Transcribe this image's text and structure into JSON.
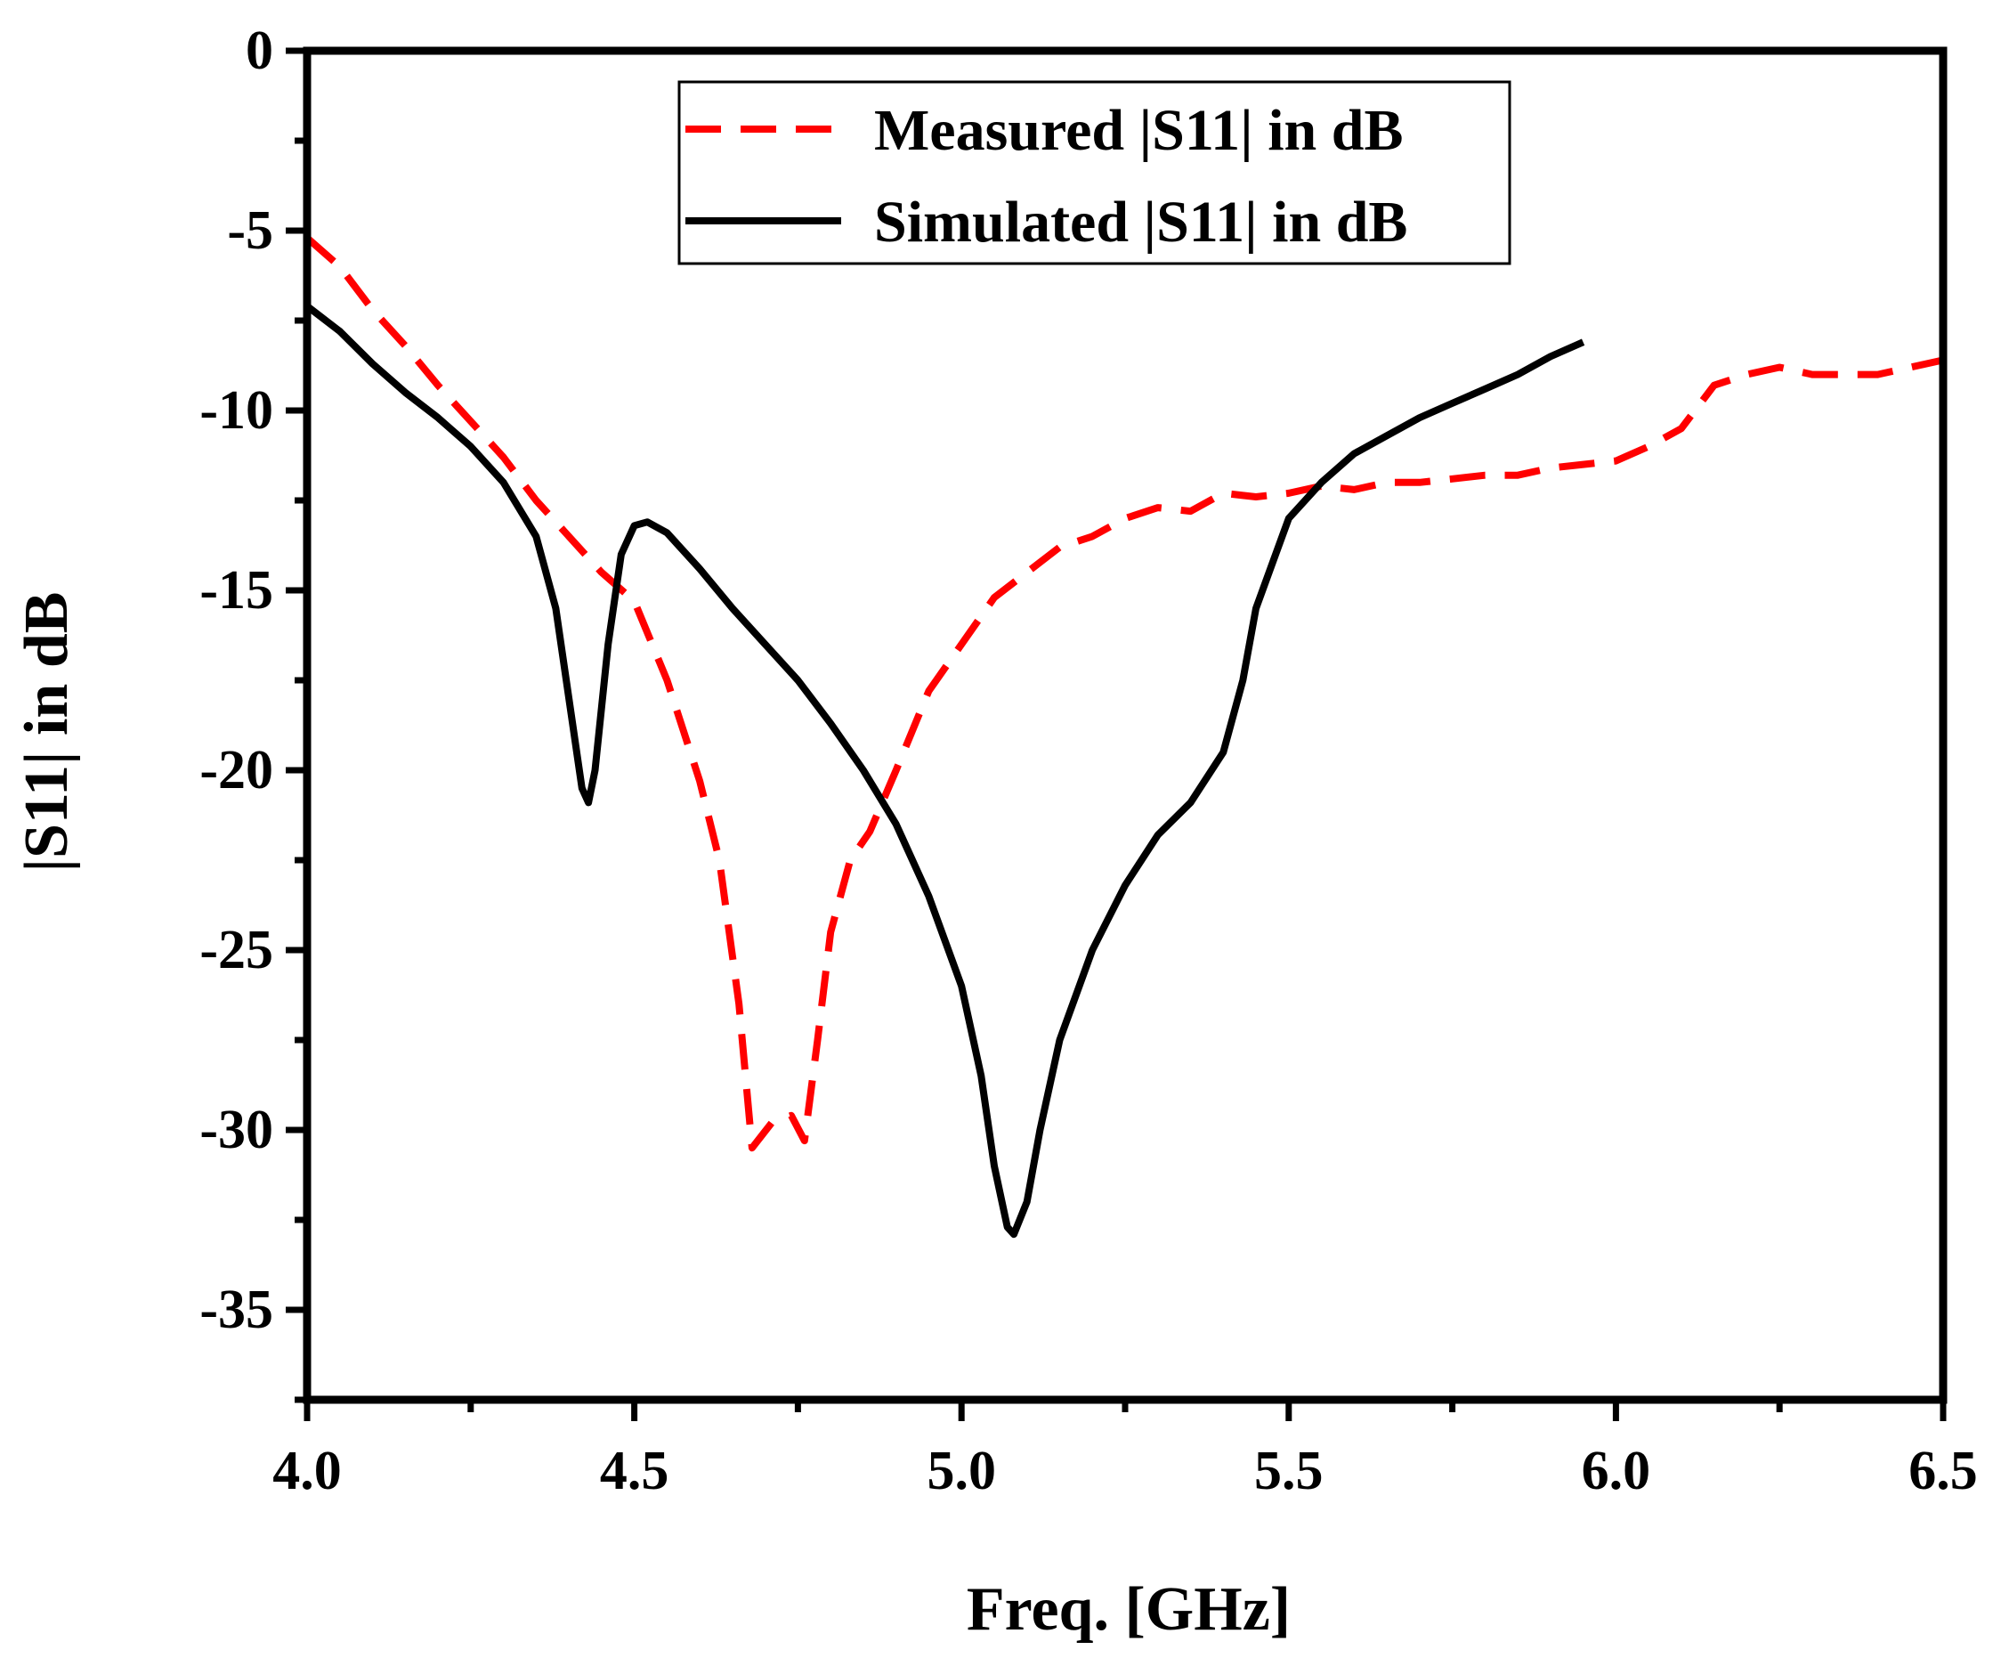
{
  "chart_data": {
    "type": "line",
    "title": "",
    "xlabel": "Freq. [GHz]",
    "ylabel": "|S11| in dB",
    "xlim": [
      4.0,
      6.5
    ],
    "ylim": [
      -37.5,
      0
    ],
    "x_ticks": [
      4.0,
      4.5,
      5.0,
      5.5,
      6.0,
      6.5
    ],
    "x_tick_labels": [
      "4.0",
      "4.5",
      "5.0",
      "5.5",
      "6.0",
      "6.5"
    ],
    "y_ticks": [
      0,
      -5,
      -10,
      -15,
      -20,
      -25,
      -30,
      -35
    ],
    "y_tick_labels": [
      "0",
      "-5",
      "-10",
      "-15",
      "-20",
      "-25",
      "-30",
      "-35"
    ],
    "grid": false,
    "legend_position": "top-center",
    "series": [
      {
        "name": "Measured |S11| in dB",
        "color": "#ff0000",
        "style": "dashed",
        "points": [
          [
            4.0,
            -5.2
          ],
          [
            4.05,
            -6.0
          ],
          [
            4.1,
            -7.2
          ],
          [
            4.15,
            -8.2
          ],
          [
            4.2,
            -9.3
          ],
          [
            4.25,
            -10.3
          ],
          [
            4.3,
            -11.3
          ],
          [
            4.35,
            -12.5
          ],
          [
            4.4,
            -13.5
          ],
          [
            4.45,
            -14.5
          ],
          [
            4.5,
            -15.3
          ],
          [
            4.55,
            -17.5
          ],
          [
            4.6,
            -20.3
          ],
          [
            4.63,
            -22.5
          ],
          [
            4.66,
            -26.5
          ],
          [
            4.68,
            -30.5
          ],
          [
            4.71,
            -29.8
          ],
          [
            4.74,
            -29.6
          ],
          [
            4.76,
            -30.3
          ],
          [
            4.78,
            -27.5
          ],
          [
            4.8,
            -24.5
          ],
          [
            4.83,
            -22.5
          ],
          [
            4.86,
            -21.7
          ],
          [
            4.9,
            -20.0
          ],
          [
            4.95,
            -17.8
          ],
          [
            5.0,
            -16.5
          ],
          [
            5.05,
            -15.2
          ],
          [
            5.1,
            -14.5
          ],
          [
            5.15,
            -13.8
          ],
          [
            5.2,
            -13.5
          ],
          [
            5.25,
            -13.0
          ],
          [
            5.3,
            -12.7
          ],
          [
            5.35,
            -12.8
          ],
          [
            5.4,
            -12.3
          ],
          [
            5.45,
            -12.4
          ],
          [
            5.5,
            -12.3
          ],
          [
            5.55,
            -12.1
          ],
          [
            5.6,
            -12.2
          ],
          [
            5.65,
            -12.0
          ],
          [
            5.7,
            -12.0
          ],
          [
            5.75,
            -11.9
          ],
          [
            5.8,
            -11.8
          ],
          [
            5.85,
            -11.8
          ],
          [
            5.9,
            -11.6
          ],
          [
            5.95,
            -11.5
          ],
          [
            6.0,
            -11.4
          ],
          [
            6.05,
            -11.0
          ],
          [
            6.1,
            -10.5
          ],
          [
            6.15,
            -9.3
          ],
          [
            6.2,
            -9.0
          ],
          [
            6.25,
            -8.8
          ],
          [
            6.3,
            -9.0
          ],
          [
            6.35,
            -9.0
          ],
          [
            6.4,
            -9.0
          ],
          [
            6.45,
            -8.8
          ],
          [
            6.5,
            -8.6
          ]
        ]
      },
      {
        "name": "Simulated |S11| in dB",
        "color": "#000000",
        "style": "solid",
        "points": [
          [
            4.0,
            -7.1
          ],
          [
            4.05,
            -7.8
          ],
          [
            4.1,
            -8.7
          ],
          [
            4.15,
            -9.5
          ],
          [
            4.2,
            -10.2
          ],
          [
            4.25,
            -11.0
          ],
          [
            4.3,
            -12.0
          ],
          [
            4.35,
            -13.5
          ],
          [
            4.38,
            -15.5
          ],
          [
            4.4,
            -18.0
          ],
          [
            4.42,
            -20.5
          ],
          [
            4.43,
            -20.9
          ],
          [
            4.44,
            -20.0
          ],
          [
            4.46,
            -16.5
          ],
          [
            4.48,
            -14.0
          ],
          [
            4.5,
            -13.2
          ],
          [
            4.52,
            -13.1
          ],
          [
            4.55,
            -13.4
          ],
          [
            4.6,
            -14.4
          ],
          [
            4.65,
            -15.5
          ],
          [
            4.7,
            -16.5
          ],
          [
            4.75,
            -17.5
          ],
          [
            4.8,
            -18.7
          ],
          [
            4.85,
            -20.0
          ],
          [
            4.9,
            -21.5
          ],
          [
            4.95,
            -23.5
          ],
          [
            5.0,
            -26.0
          ],
          [
            5.03,
            -28.5
          ],
          [
            5.05,
            -31.0
          ],
          [
            5.07,
            -32.7
          ],
          [
            5.08,
            -32.9
          ],
          [
            5.1,
            -32.0
          ],
          [
            5.12,
            -30.0
          ],
          [
            5.15,
            -27.5
          ],
          [
            5.2,
            -25.0
          ],
          [
            5.25,
            -23.2
          ],
          [
            5.3,
            -21.8
          ],
          [
            5.35,
            -20.9
          ],
          [
            5.4,
            -19.5
          ],
          [
            5.43,
            -17.5
          ],
          [
            5.45,
            -15.5
          ],
          [
            5.5,
            -13.0
          ],
          [
            5.55,
            -12.0
          ],
          [
            5.6,
            -11.2
          ],
          [
            5.65,
            -10.7
          ],
          [
            5.7,
            -10.2
          ],
          [
            5.75,
            -9.8
          ],
          [
            5.8,
            -9.4
          ],
          [
            5.85,
            -9.0
          ],
          [
            5.9,
            -8.5
          ],
          [
            5.95,
            -8.1
          ]
        ]
      }
    ]
  }
}
